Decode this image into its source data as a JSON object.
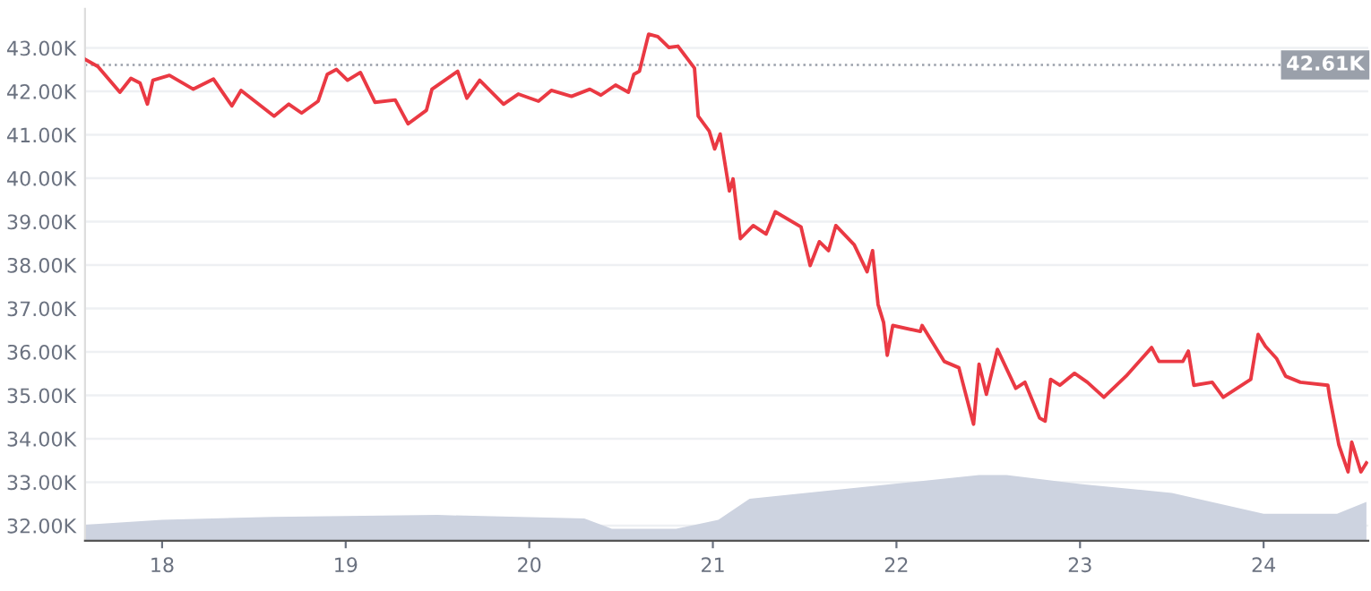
{
  "chart_data": {
    "type": "line",
    "x": [
      17.58,
      17.65,
      17.77,
      17.83,
      17.88,
      17.92,
      17.95,
      18.04,
      18.17,
      18.28,
      18.38,
      18.43,
      18.61,
      18.69,
      18.76,
      18.85,
      18.9,
      18.95,
      19.01,
      19.08,
      19.16,
      19.27,
      19.34,
      19.44,
      19.47,
      19.61,
      19.66,
      19.73,
      19.86,
      19.94,
      20.05,
      20.12,
      20.23,
      20.33,
      20.39,
      20.47,
      20.54,
      20.57,
      20.6,
      20.65,
      20.7,
      20.76,
      20.81,
      20.9,
      20.92,
      20.98,
      21.01,
      21.04,
      21.09,
      21.11,
      21.15,
      21.22,
      21.29,
      21.34,
      21.48,
      21.53,
      21.58,
      21.63,
      21.67,
      21.77,
      21.84,
      21.87,
      21.9,
      21.93,
      21.95,
      21.98,
      22.13,
      22.14,
      22.26,
      22.34,
      22.42,
      22.45,
      22.49,
      22.55,
      22.65,
      22.7,
      22.78,
      22.81,
      22.84,
      22.89,
      22.97,
      23.04,
      23.13,
      23.25,
      23.39,
      23.43,
      23.56,
      23.59,
      23.62,
      23.72,
      23.78,
      23.93,
      23.97,
      24.01,
      24.07,
      24.12,
      24.2,
      24.35,
      24.36,
      24.41,
      24.46,
      24.48,
      24.53,
      24.56
    ],
    "series": [
      {
        "color": "#ea3943",
        "values": [
          42740,
          42574,
          41980,
          42300,
          42190,
          41706,
          42256,
          42368,
          42050,
          42283,
          41665,
          42022,
          41430,
          41706,
          41500,
          41774,
          42394,
          42504,
          42256,
          42435,
          41747,
          41802,
          41252,
          41566,
          42050,
          42463,
          41843,
          42256,
          41706,
          41938,
          41774,
          42022,
          41884,
          42050,
          41913,
          42145,
          41980,
          42394,
          42463,
          43318,
          43260,
          43012,
          43041,
          42533,
          41430,
          41087,
          40674,
          41017,
          39707,
          39984,
          38608,
          38909,
          38715,
          39227,
          38880,
          37988,
          38538,
          38331,
          38909,
          38467,
          37847,
          38331,
          37091,
          36678,
          35922,
          36608,
          36471,
          36608,
          35781,
          35636,
          34335,
          35716,
          35025,
          36058,
          35162,
          35300,
          34476,
          34405,
          35368,
          35232,
          35507,
          35300,
          34955,
          35439,
          36100,
          35781,
          35781,
          36017,
          35232,
          35300,
          34955,
          35368,
          36402,
          36128,
          35851,
          35439,
          35300,
          35232,
          34955,
          33856,
          33236,
          33922,
          33236,
          33443
        ]
      },
      {
        "type": "area",
        "color": "#cdd3e0",
        "x": [
          17.58,
          18.0,
          18.6,
          19.5,
          20.3,
          20.45,
          20.8,
          21.03,
          21.2,
          22.45,
          22.6,
          23.0,
          23.5,
          24.0,
          24.4,
          24.56
        ],
        "values": [
          32021,
          32133,
          32202,
          32244,
          32161,
          31926,
          31926,
          32133,
          32616,
          33165,
          33165,
          32959,
          32752,
          32270,
          32270,
          32546
        ]
      }
    ],
    "xlim": [
      17.58,
      24.57
    ],
    "xticks": [
      18,
      19,
      20,
      21,
      22,
      23,
      24
    ],
    "ylim": [
      31650,
      43900
    ],
    "yticks": [
      {
        "value": 32000,
        "label": "32.00K"
      },
      {
        "value": 33000,
        "label": "33.00K"
      },
      {
        "value": 34000,
        "label": "34.00K"
      },
      {
        "value": 35000,
        "label": "35.00K"
      },
      {
        "value": 36000,
        "label": "36.00K"
      },
      {
        "value": 37000,
        "label": "37.00K"
      },
      {
        "value": 38000,
        "label": "38.00K"
      },
      {
        "value": 39000,
        "label": "39.00K"
      },
      {
        "value": 40000,
        "label": "40.00K"
      },
      {
        "value": 41000,
        "label": "41.00K"
      },
      {
        "value": 42000,
        "label": "42.00K"
      },
      {
        "value": 43000,
        "label": "43.00K"
      }
    ],
    "ref_lines": [
      {
        "axis": "y",
        "value": 42610,
        "label": "42.61K",
        "color": "#9aa0aa",
        "line_style": "dotted"
      }
    ],
    "grid": "y",
    "line_style": "solid"
  }
}
